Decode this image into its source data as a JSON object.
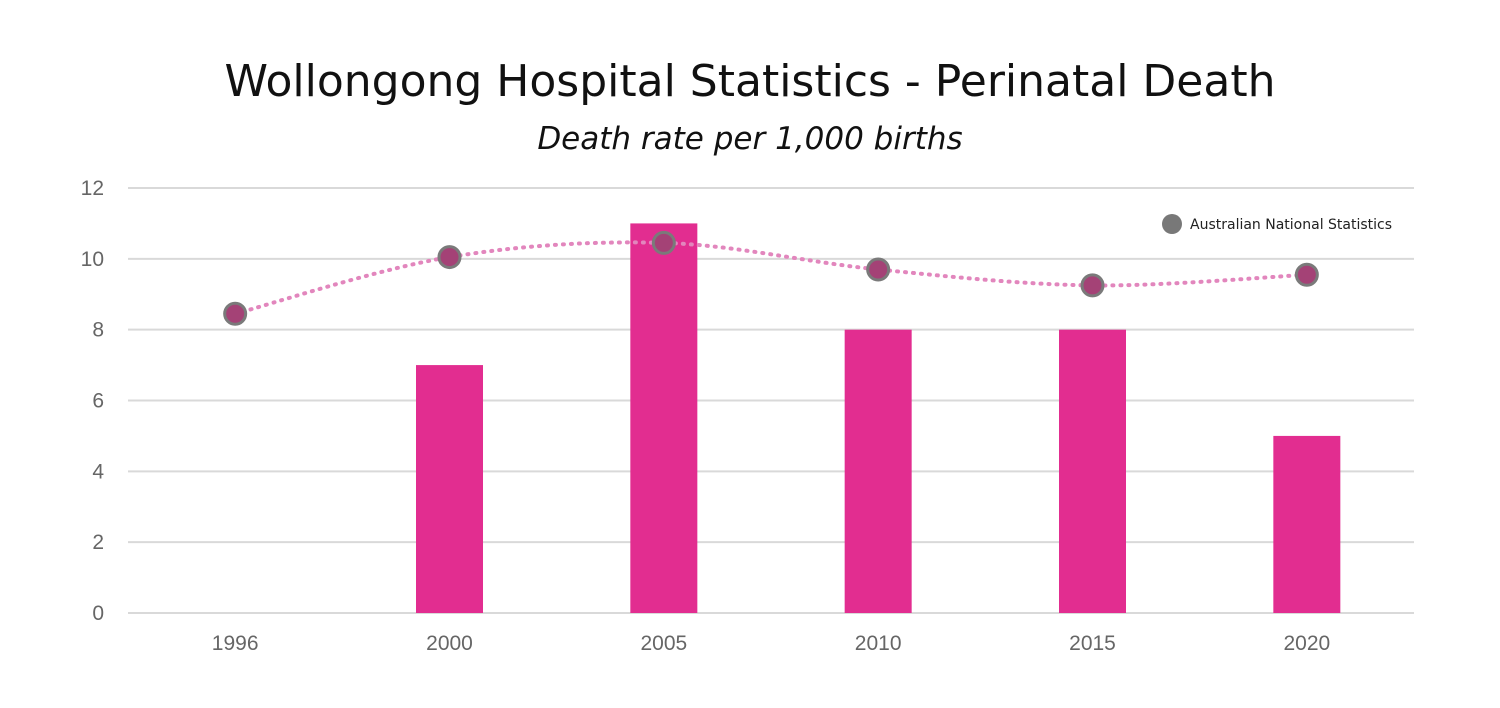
{
  "title": "Wollongong Hospital Statistics  - Perinatal Death",
  "subtitle": "Death rate per 1,000 births",
  "colors": {
    "bar": "#e22d90",
    "line": "#e286bd",
    "marker_fill": "#a44276",
    "marker_stroke": "#7a7a7a",
    "legend_marker": "#787878",
    "grid": "#d9d9d9",
    "axis_text": "#666666"
  },
  "chart_data": {
    "type": "bar",
    "categories": [
      "1996",
      "2000",
      "2005",
      "2010",
      "2015",
      "2020"
    ],
    "series": [
      {
        "type": "bar",
        "values": [
          null,
          7,
          11,
          8,
          8,
          5
        ]
      },
      {
        "name": "Australian National Statistics",
        "type": "line",
        "style": "dotted",
        "values": [
          8.45,
          10.05,
          10.45,
          9.7,
          9.25,
          9.55
        ]
      }
    ],
    "ylim": [
      0,
      12
    ],
    "yticks": [
      "0",
      "2",
      "4",
      "6",
      "8",
      "10",
      "12"
    ],
    "grid": true,
    "legend": "top-right"
  }
}
